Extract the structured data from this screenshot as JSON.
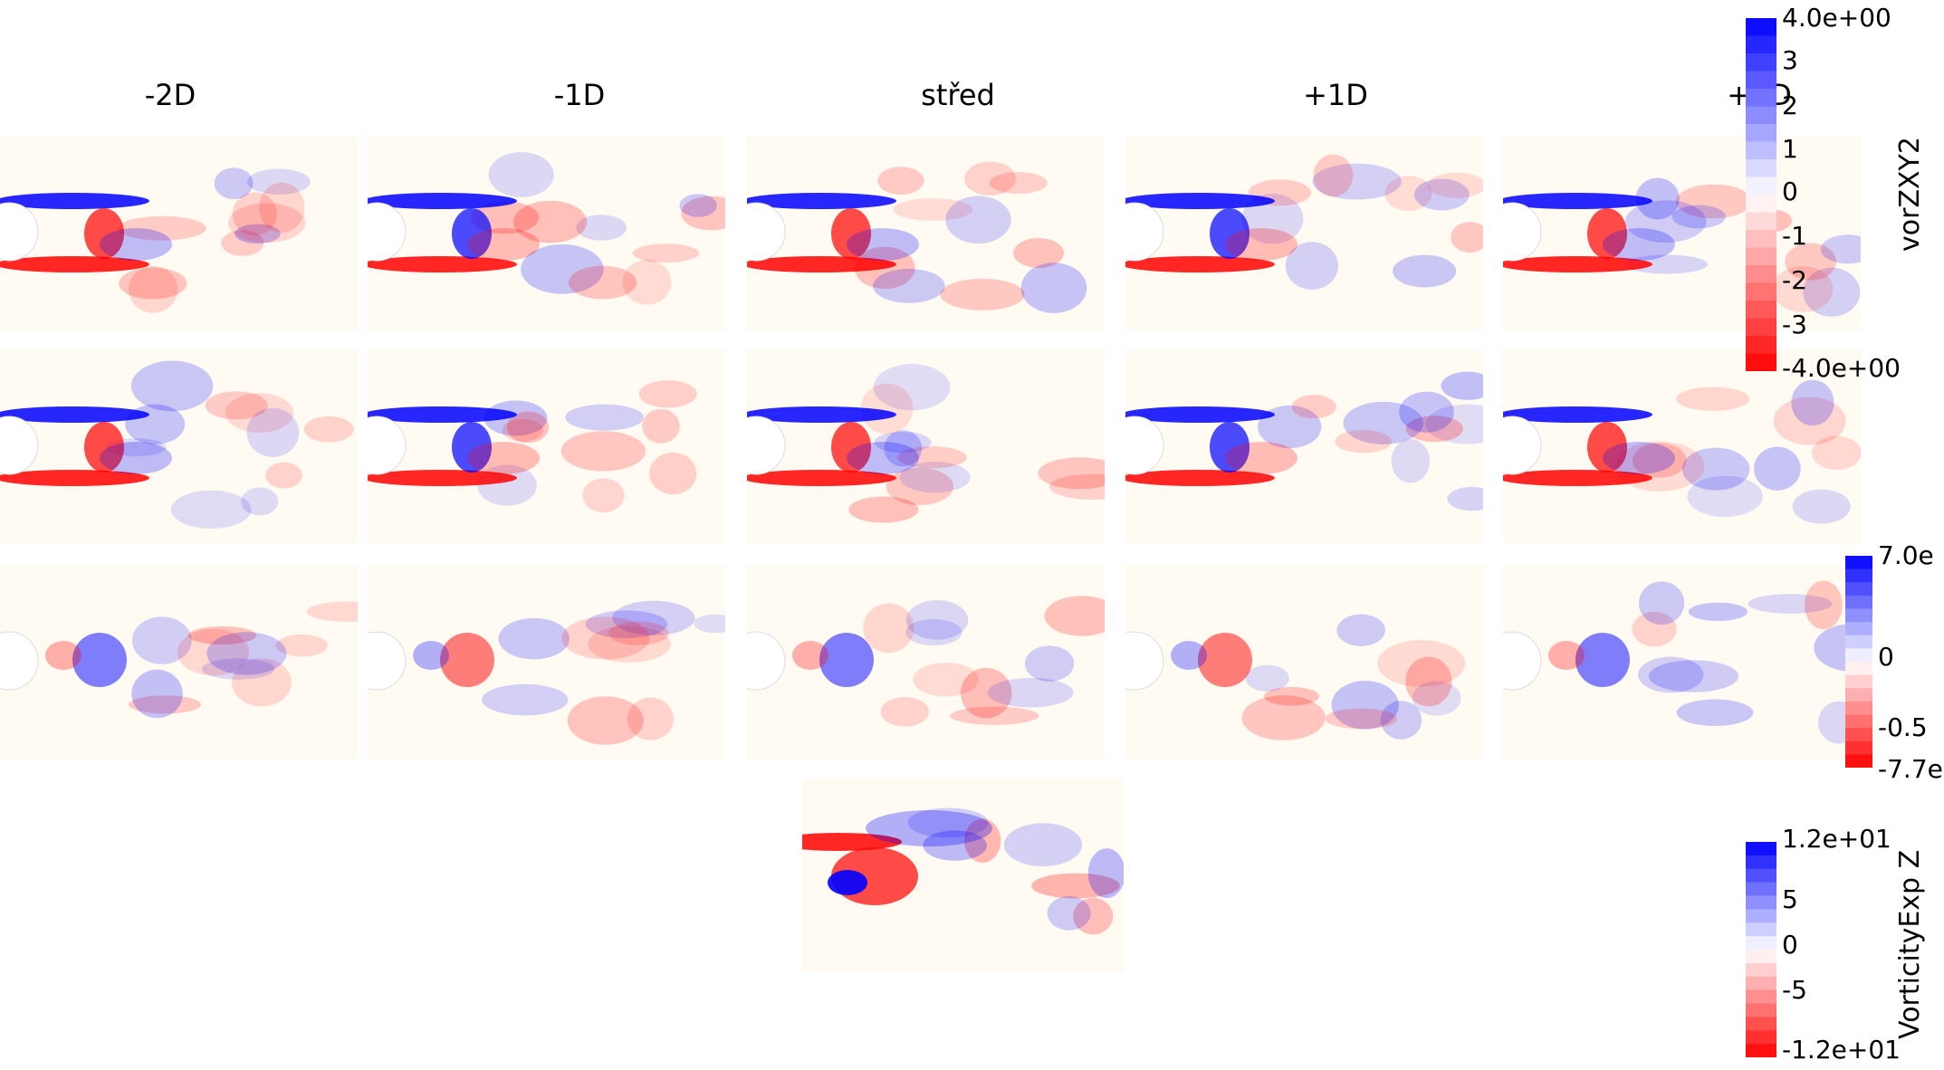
{
  "columns": [
    "-2D",
    "-1D",
    "střed",
    "+1D",
    "+2D"
  ],
  "colorbars": [
    {
      "title": "vorZXY2",
      "ticks": [
        "4.0e+00",
        "3",
        "2",
        "1",
        "0",
        "-1",
        "-2",
        "-3",
        "-4.0e+00"
      ],
      "max_color": "#0000ff",
      "min_color": "#ff0000"
    },
    {
      "title": "",
      "ticks": [
        "7.0e",
        "0",
        "-0.5",
        "-7.7e"
      ],
      "max_color": "#0000ff",
      "min_color": "#ff0000"
    },
    {
      "title": "VorticityExp Z",
      "ticks": [
        "1.2e+01",
        "5",
        "0",
        "-5",
        "-1.2e+01"
      ],
      "max_color": "#0000ff",
      "min_color": "#ff0000"
    }
  ],
  "colors": {
    "positive": "#0000ff",
    "negative": "#ff0000",
    "background": "#fffbf2"
  }
}
